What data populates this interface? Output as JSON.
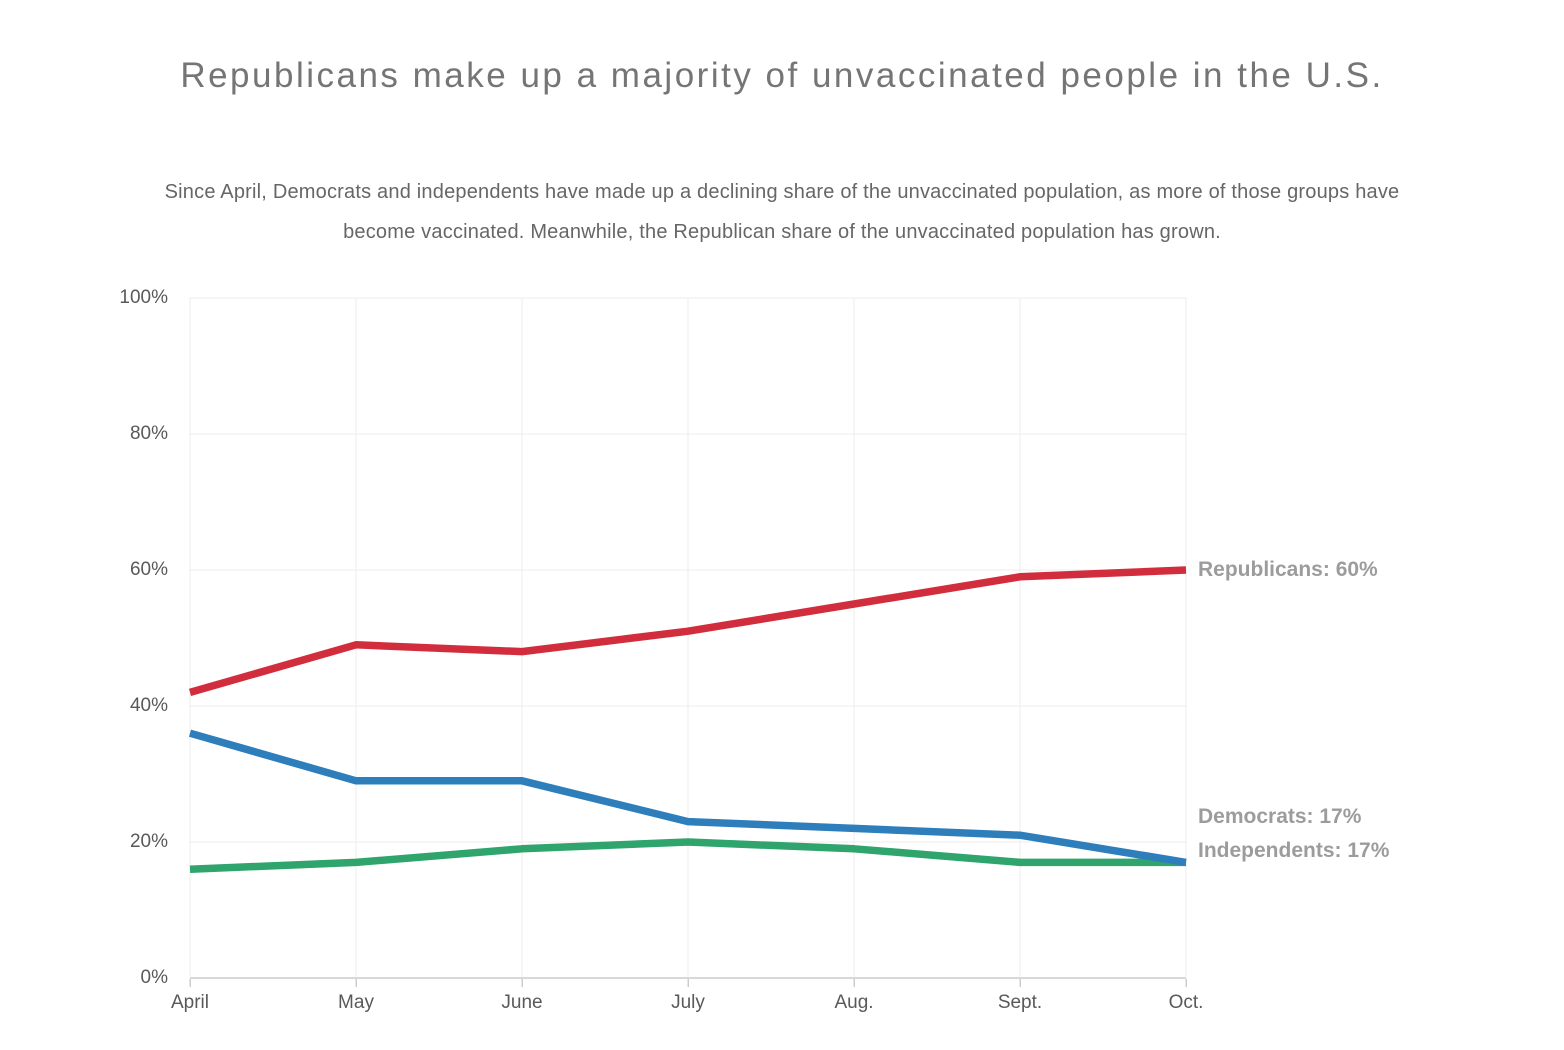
{
  "header": {
    "title": "Republicans make up a majority of unvaccinated people in the U.S.",
    "subtitle": "Since April, Democrats and independents have made up a declining share of the unvaccinated population, as more of those groups have become vaccinated. Meanwhile, the Republican share of the unvaccinated population has grown."
  },
  "chart_data": {
    "type": "line",
    "title": "Republicans make up a majority of unvaccinated people in the U.S.",
    "categories": [
      "April",
      "May",
      "June",
      "July",
      "Aug.",
      "Sept.",
      "Oct."
    ],
    "series": [
      {
        "name": "Republicans",
        "color": "#d22d3c",
        "values": [
          42,
          49,
          48,
          51,
          55,
          59,
          60
        ],
        "end_label": "Republicans: 60%"
      },
      {
        "name": "Democrats",
        "color": "#2e7ebc",
        "values": [
          36,
          29,
          29,
          23,
          22,
          21,
          17
        ],
        "end_label": "Democrats: 17%"
      },
      {
        "name": "Independents",
        "color": "#2fa46c",
        "values": [
          16,
          17,
          19,
          20,
          19,
          17,
          17
        ],
        "end_label": "Independents: 17%"
      }
    ],
    "xlabel": "",
    "ylabel": "",
    "ylim": [
      0,
      100
    ],
    "yticks": [
      {
        "v": 100,
        "label": "100%"
      },
      {
        "v": 80,
        "label": "80%"
      },
      {
        "v": 60,
        "label": "60%"
      },
      {
        "v": 40,
        "label": "40%"
      },
      {
        "v": 20,
        "label": "20%"
      },
      {
        "v": 0,
        "label": "0%"
      }
    ],
    "grid": true,
    "legend_position": "end-of-line-labels",
    "colors": {
      "grid_line": "#ececec",
      "axis_line": "#d8d8d8",
      "tick_mark": "#cccccc",
      "tick_text": "#595959",
      "end_label_text": "#9c9c9c",
      "title_text": "#757575",
      "subtitle_text": "#666666"
    }
  }
}
